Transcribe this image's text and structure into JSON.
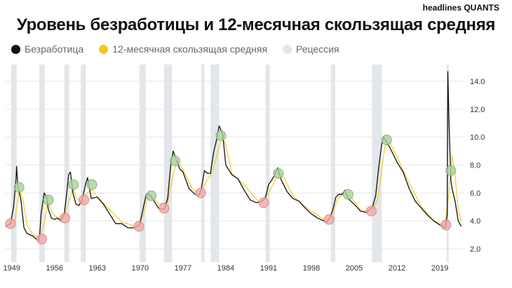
{
  "brand": "headlines QUANTS",
  "title": "Уровень безработицы и 12-месячная скользящая средняя",
  "legend": [
    {
      "name": "unemployment",
      "label": "Безработица",
      "color": "#111111"
    },
    {
      "name": "moving-average",
      "label": "12-месячная скользящая средняя",
      "color": "#f5c518"
    },
    {
      "name": "recession",
      "label": "Рецессия",
      "color": "#e3e6ea"
    }
  ],
  "colors": {
    "unemployment_line": "#111111",
    "moving_average_line": "#f5c518",
    "recession_band": "#e3e6ea",
    "marker_red": "#f2a8a8",
    "marker_green": "#a9cf9c",
    "gridline": "#e6e6e6"
  },
  "chart_data": {
    "type": "line",
    "title": "Уровень безработицы и 12-месячная скользящая средняя",
    "xlabel": "",
    "ylabel": "",
    "xlim": [
      1948.0,
      2023.0
    ],
    "ylim": [
      1.0,
      15.5
    ],
    "y_ticks": [
      "14.0",
      "12.0",
      "10.0",
      "8.0",
      "6.0",
      "4.0",
      "2.0"
    ],
    "x_ticks": [
      "1949",
      "1956",
      "1963",
      "1970",
      "1977",
      "1984",
      "1991",
      "1998",
      "2005",
      "2012",
      "2019"
    ],
    "grid": true,
    "y_axis_position": "right",
    "recessions": [
      [
        1948.9,
        1949.8
      ],
      [
        1953.5,
        1954.4
      ],
      [
        1957.6,
        1958.4
      ],
      [
        1960.3,
        1961.1
      ],
      [
        1969.9,
        1970.9
      ],
      [
        1973.9,
        1975.2
      ],
      [
        1980.0,
        1980.5
      ],
      [
        1981.5,
        1982.9
      ],
      [
        1990.5,
        1991.2
      ],
      [
        2001.2,
        2001.9
      ],
      [
        2007.9,
        2009.5
      ],
      [
        2020.1,
        2020.4
      ]
    ],
    "series": [
      {
        "name": "Безработица",
        "x": [
          1948.0,
          1948.8,
          1949.3,
          1949.7,
          1949.8,
          1950.0,
          1950.5,
          1951.0,
          1951.5,
          1952.0,
          1952.5,
          1953.0,
          1953.5,
          1953.8,
          1954.3,
          1954.7,
          1955.0,
          1955.5,
          1956.0,
          1956.5,
          1957.0,
          1957.6,
          1958.0,
          1958.3,
          1958.6,
          1959.0,
          1959.5,
          1960.0,
          1960.5,
          1961.0,
          1961.4,
          1962.0,
          1963.0,
          1964.0,
          1965.0,
          1966.0,
          1967.0,
          1968.0,
          1969.0,
          1969.9,
          1970.5,
          1971.0,
          1971.5,
          1972.0,
          1973.0,
          1973.9,
          1974.5,
          1975.0,
          1975.4,
          1975.8,
          1976.5,
          1977.0,
          1978.0,
          1979.0,
          1979.6,
          1980.0,
          1980.5,
          1981.0,
          1981.5,
          1982.0,
          1982.5,
          1982.9,
          1983.5,
          1984.0,
          1985.0,
          1986.0,
          1987.0,
          1988.0,
          1989.0,
          1990.0,
          1990.5,
          1991.0,
          1991.5,
          1992.0,
          1992.5,
          1993.0,
          1994.0,
          1995.0,
          1996.0,
          1997.0,
          1998.0,
          1999.0,
          2000.0,
          2000.5,
          2001.0,
          2001.5,
          2002.0,
          2002.5,
          2003.0,
          2003.5,
          2004.0,
          2005.0,
          2006.0,
          2007.0,
          2007.5,
          2008.0,
          2008.5,
          2009.0,
          2009.5,
          2009.8,
          2010.5,
          2011.0,
          2012.0,
          2013.0,
          2014.0,
          2015.0,
          2016.0,
          2017.0,
          2018.0,
          2019.0,
          2019.9,
          2020.2,
          2020.3,
          2020.5,
          2020.8,
          2021.0,
          2021.5,
          2022.0,
          2022.5
        ],
        "values": [
          3.6,
          3.8,
          5.0,
          7.0,
          7.9,
          6.5,
          5.5,
          3.5,
          3.1,
          3.0,
          2.9,
          2.7,
          2.6,
          4.5,
          6.0,
          5.7,
          4.8,
          4.2,
          4.1,
          4.2,
          4.0,
          4.5,
          6.0,
          7.3,
          7.5,
          6.0,
          5.2,
          5.1,
          5.5,
          6.5,
          7.1,
          5.6,
          5.7,
          5.2,
          4.5,
          3.8,
          3.8,
          3.5,
          3.5,
          3.7,
          4.9,
          5.9,
          5.9,
          5.6,
          4.9,
          4.8,
          5.6,
          8.0,
          9.0,
          8.5,
          7.7,
          7.5,
          6.3,
          5.9,
          5.8,
          6.3,
          7.6,
          7.4,
          7.4,
          8.9,
          9.8,
          10.8,
          10.2,
          8.0,
          7.3,
          7.0,
          6.2,
          5.5,
          5.3,
          5.4,
          5.7,
          6.6,
          6.9,
          7.3,
          7.8,
          7.0,
          6.1,
          5.6,
          5.4,
          4.9,
          4.5,
          4.2,
          4.0,
          3.9,
          4.2,
          4.8,
          5.7,
          5.9,
          5.9,
          6.2,
          5.6,
          5.2,
          4.7,
          4.6,
          4.8,
          5.0,
          5.8,
          7.8,
          9.5,
          10.0,
          9.5,
          9.1,
          8.2,
          7.5,
          6.3,
          5.4,
          4.9,
          4.4,
          4.0,
          3.7,
          3.5,
          4.4,
          14.7,
          11.1,
          6.9,
          6.3,
          5.4,
          4.0,
          3.6
        ]
      },
      {
        "name": "12-месячная скользящая средняя",
        "x": [
          1948.5,
          1949.5,
          1950.2,
          1950.8,
          1951.5,
          1952.5,
          1953.5,
          1954.3,
          1954.9,
          1955.6,
          1956.5,
          1957.5,
          1958.5,
          1959.0,
          1959.6,
          1960.5,
          1961.4,
          1962.0,
          1963.0,
          1965.0,
          1967.0,
          1969.5,
          1970.5,
          1971.3,
          1971.9,
          1973.0,
          1974.5,
          1975.5,
          1976.0,
          1977.0,
          1978.5,
          1979.9,
          1980.8,
          1981.8,
          1982.5,
          1983.3,
          1983.9,
          1985.0,
          1987.0,
          1989.5,
          1990.9,
          1991.8,
          1992.6,
          1993.5,
          1995.0,
          1997.0,
          2000.0,
          2001.3,
          2002.3,
          2003.5,
          2004.5,
          2006.0,
          2007.8,
          2008.8,
          2009.5,
          2010.0,
          2010.8,
          2012.0,
          2014.0,
          2016.0,
          2018.0,
          2019.8,
          2020.5,
          2021.0,
          2021.5,
          2022.0,
          2022.5
        ],
        "values": [
          3.7,
          3.9,
          6.2,
          5.6,
          3.7,
          3.0,
          2.8,
          3.8,
          5.4,
          4.6,
          4.2,
          4.2,
          5.6,
          6.4,
          5.6,
          5.3,
          6.0,
          6.3,
          5.7,
          4.8,
          3.9,
          3.6,
          4.4,
          5.8,
          5.8,
          5.2,
          5.3,
          7.5,
          8.3,
          7.7,
          6.3,
          5.9,
          6.8,
          7.5,
          8.6,
          9.9,
          9.6,
          7.4,
          6.6,
          5.3,
          5.9,
          6.7,
          7.4,
          7.1,
          5.8,
          5.0,
          4.1,
          4.2,
          5.6,
          6.0,
          5.7,
          4.8,
          4.6,
          5.5,
          7.6,
          9.3,
          9.6,
          8.6,
          6.7,
          5.0,
          4.0,
          3.7,
          6.0,
          8.7,
          7.2,
          4.8,
          4.0
        ]
      }
    ],
    "markers": [
      {
        "x": 1948.8,
        "y": 3.8,
        "color": "red"
      },
      {
        "x": 1950.2,
        "y": 6.4,
        "color": "green"
      },
      {
        "x": 1953.9,
        "y": 2.7,
        "color": "red"
      },
      {
        "x": 1955.0,
        "y": 5.5,
        "color": "green"
      },
      {
        "x": 1957.7,
        "y": 4.2,
        "color": "red"
      },
      {
        "x": 1959.1,
        "y": 6.6,
        "color": "green"
      },
      {
        "x": 1960.8,
        "y": 5.5,
        "color": "red"
      },
      {
        "x": 1962.1,
        "y": 6.6,
        "color": "green"
      },
      {
        "x": 1969.8,
        "y": 3.6,
        "color": "red"
      },
      {
        "x": 1971.8,
        "y": 5.8,
        "color": "green"
      },
      {
        "x": 1973.9,
        "y": 4.9,
        "color": "red"
      },
      {
        "x": 1975.7,
        "y": 8.3,
        "color": "green"
      },
      {
        "x": 1979.9,
        "y": 6.0,
        "color": "red"
      },
      {
        "x": 1983.2,
        "y": 10.1,
        "color": "green"
      },
      {
        "x": 1990.2,
        "y": 5.3,
        "color": "red"
      },
      {
        "x": 1992.6,
        "y": 7.4,
        "color": "green"
      },
      {
        "x": 2000.9,
        "y": 4.1,
        "color": "red"
      },
      {
        "x": 2004.0,
        "y": 5.9,
        "color": "green"
      },
      {
        "x": 2007.8,
        "y": 4.7,
        "color": "red"
      },
      {
        "x": 2010.3,
        "y": 9.8,
        "color": "green"
      },
      {
        "x": 2020.0,
        "y": 3.7,
        "color": "red"
      },
      {
        "x": 2020.8,
        "y": 7.6,
        "color": "green"
      }
    ]
  }
}
